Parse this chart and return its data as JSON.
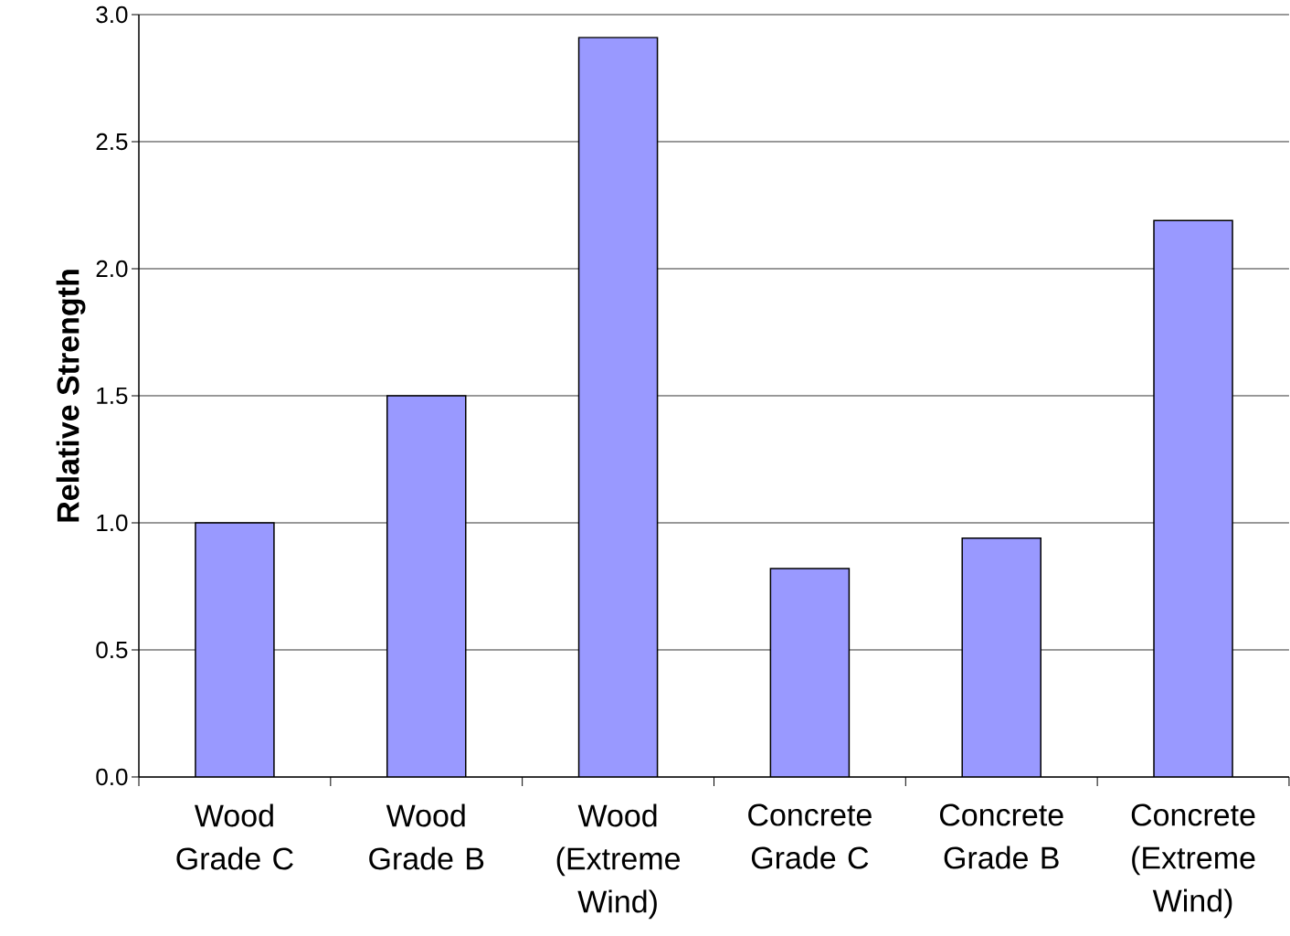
{
  "chart_data": {
    "type": "bar",
    "ylabel": "Relative Strength",
    "categories": [
      "Wood Grade C",
      "Wood Grade B",
      "Wood (Extreme Wind)",
      "Concrete Grade C",
      "Concrete Grade B",
      "Concrete (Extreme Wind)"
    ],
    "values": [
      1.0,
      1.5,
      2.91,
      0.82,
      0.94,
      2.19
    ],
    "color": "#9999ff",
    "ylim": [
      0,
      3.0
    ],
    "yticks": [
      {
        "value": 0,
        "label": "0.0"
      },
      {
        "value": 0.5,
        "label": "0.5"
      },
      {
        "value": 1.0,
        "label": "1.0"
      },
      {
        "value": 1.5,
        "label": "1.5"
      },
      {
        "value": 2.0,
        "label": "2.0"
      },
      {
        "value": 2.5,
        "label": "2.5"
      },
      {
        "value": 3.0,
        "label": "3.0"
      }
    ],
    "grid": "y"
  }
}
